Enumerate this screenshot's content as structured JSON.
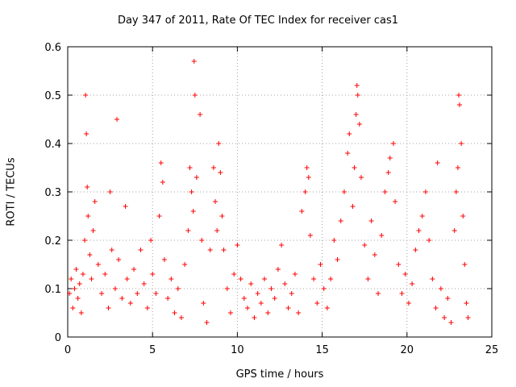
{
  "chart_data": {
    "type": "scatter",
    "title": "Day 347 of 2011, Rate Of TEC Index for receiver cas1",
    "xlabel": "GPS time / hours",
    "ylabel": "ROTI / TECUs",
    "xlim": [
      0,
      25
    ],
    "ylim": [
      0,
      0.6
    ],
    "xticks": [
      "0",
      "5",
      "10",
      "15",
      "20",
      "25"
    ],
    "yticks": [
      "0",
      "0.1",
      "0.2",
      "0.3",
      "0.4",
      "0.5",
      "0.6"
    ],
    "grid": true,
    "marker": "+",
    "color": "#ff0000",
    "series": [
      {
        "points": [
          [
            0.1,
            0.09
          ],
          [
            0.2,
            0.12
          ],
          [
            0.3,
            0.06
          ],
          [
            0.4,
            0.1
          ],
          [
            0.5,
            0.14
          ],
          [
            0.6,
            0.08
          ],
          [
            0.7,
            0.11
          ],
          [
            0.8,
            0.05
          ],
          [
            0.9,
            0.13
          ],
          [
            1.0,
            0.2
          ],
          [
            1.05,
            0.5
          ],
          [
            1.1,
            0.42
          ],
          [
            1.15,
            0.31
          ],
          [
            1.2,
            0.25
          ],
          [
            1.3,
            0.17
          ],
          [
            1.4,
            0.12
          ],
          [
            1.5,
            0.22
          ],
          [
            1.6,
            0.28
          ],
          [
            1.8,
            0.15
          ],
          [
            2.0,
            0.09
          ],
          [
            2.2,
            0.13
          ],
          [
            2.4,
            0.06
          ],
          [
            2.5,
            0.3
          ],
          [
            2.6,
            0.18
          ],
          [
            2.8,
            0.1
          ],
          [
            2.9,
            0.45
          ],
          [
            3.0,
            0.16
          ],
          [
            3.2,
            0.08
          ],
          [
            3.4,
            0.27
          ],
          [
            3.5,
            0.12
          ],
          [
            3.7,
            0.07
          ],
          [
            3.9,
            0.14
          ],
          [
            4.1,
            0.09
          ],
          [
            4.3,
            0.18
          ],
          [
            4.5,
            0.11
          ],
          [
            4.7,
            0.06
          ],
          [
            4.9,
            0.2
          ],
          [
            5.0,
            0.13
          ],
          [
            5.2,
            0.09
          ],
          [
            5.4,
            0.25
          ],
          [
            5.5,
            0.36
          ],
          [
            5.6,
            0.32
          ],
          [
            5.7,
            0.16
          ],
          [
            5.9,
            0.08
          ],
          [
            6.1,
            0.12
          ],
          [
            6.3,
            0.05
          ],
          [
            6.5,
            0.1
          ],
          [
            6.7,
            0.04
          ],
          [
            6.9,
            0.15
          ],
          [
            7.1,
            0.22
          ],
          [
            7.2,
            0.35
          ],
          [
            7.3,
            0.3
          ],
          [
            7.4,
            0.26
          ],
          [
            7.45,
            0.57
          ],
          [
            7.5,
            0.5
          ],
          [
            7.6,
            0.33
          ],
          [
            7.8,
            0.46
          ],
          [
            7.9,
            0.2
          ],
          [
            8.0,
            0.07
          ],
          [
            8.2,
            0.03
          ],
          [
            8.4,
            0.18
          ],
          [
            8.6,
            0.35
          ],
          [
            8.7,
            0.28
          ],
          [
            8.8,
            0.22
          ],
          [
            8.9,
            0.4
          ],
          [
            9.0,
            0.34
          ],
          [
            9.1,
            0.25
          ],
          [
            9.2,
            0.18
          ],
          [
            9.4,
            0.1
          ],
          [
            9.6,
            0.05
          ],
          [
            9.8,
            0.13
          ],
          [
            10.0,
            0.19
          ],
          [
            10.2,
            0.12
          ],
          [
            10.4,
            0.08
          ],
          [
            10.6,
            0.06
          ],
          [
            10.8,
            0.11
          ],
          [
            11.0,
            0.04
          ],
          [
            11.2,
            0.09
          ],
          [
            11.4,
            0.07
          ],
          [
            11.6,
            0.12
          ],
          [
            11.8,
            0.05
          ],
          [
            12.0,
            0.1
          ],
          [
            12.2,
            0.08
          ],
          [
            12.4,
            0.14
          ],
          [
            12.6,
            0.19
          ],
          [
            12.8,
            0.11
          ],
          [
            13.0,
            0.06
          ],
          [
            13.2,
            0.09
          ],
          [
            13.4,
            0.13
          ],
          [
            13.6,
            0.05
          ],
          [
            13.8,
            0.26
          ],
          [
            14.0,
            0.3
          ],
          [
            14.1,
            0.35
          ],
          [
            14.2,
            0.33
          ],
          [
            14.3,
            0.21
          ],
          [
            14.5,
            0.12
          ],
          [
            14.7,
            0.07
          ],
          [
            14.9,
            0.15
          ],
          [
            15.1,
            0.1
          ],
          [
            15.3,
            0.06
          ],
          [
            15.5,
            0.12
          ],
          [
            15.7,
            0.2
          ],
          [
            15.9,
            0.16
          ],
          [
            16.1,
            0.24
          ],
          [
            16.3,
            0.3
          ],
          [
            16.5,
            0.38
          ],
          [
            16.6,
            0.42
          ],
          [
            16.8,
            0.27
          ],
          [
            16.9,
            0.35
          ],
          [
            17.0,
            0.46
          ],
          [
            17.05,
            0.52
          ],
          [
            17.1,
            0.5
          ],
          [
            17.2,
            0.44
          ],
          [
            17.3,
            0.33
          ],
          [
            17.5,
            0.19
          ],
          [
            17.7,
            0.12
          ],
          [
            17.9,
            0.24
          ],
          [
            18.1,
            0.17
          ],
          [
            18.3,
            0.09
          ],
          [
            18.5,
            0.21
          ],
          [
            18.7,
            0.3
          ],
          [
            18.9,
            0.34
          ],
          [
            19.0,
            0.37
          ],
          [
            19.2,
            0.4
          ],
          [
            19.3,
            0.28
          ],
          [
            19.5,
            0.15
          ],
          [
            19.7,
            0.09
          ],
          [
            19.9,
            0.13
          ],
          [
            20.1,
            0.07
          ],
          [
            20.3,
            0.11
          ],
          [
            20.5,
            0.18
          ],
          [
            20.7,
            0.22
          ],
          [
            20.9,
            0.25
          ],
          [
            21.1,
            0.3
          ],
          [
            21.3,
            0.2
          ],
          [
            21.5,
            0.12
          ],
          [
            21.7,
            0.06
          ],
          [
            21.8,
            0.36
          ],
          [
            22.0,
            0.1
          ],
          [
            22.2,
            0.04
          ],
          [
            22.4,
            0.08
          ],
          [
            22.6,
            0.03
          ],
          [
            22.8,
            0.22
          ],
          [
            22.9,
            0.3
          ],
          [
            23.0,
            0.35
          ],
          [
            23.05,
            0.5
          ],
          [
            23.1,
            0.48
          ],
          [
            23.2,
            0.4
          ],
          [
            23.3,
            0.25
          ],
          [
            23.4,
            0.15
          ],
          [
            23.5,
            0.07
          ],
          [
            23.6,
            0.04
          ]
        ]
      }
    ]
  }
}
